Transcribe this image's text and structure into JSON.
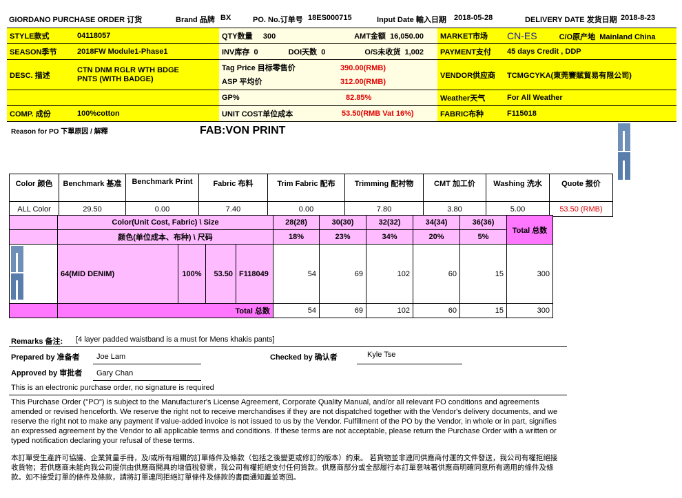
{
  "header": {
    "title": "GIORDANO PURCHASE ORDER 订货",
    "brand_label": "Brand 品牌",
    "brand": "BX",
    "po_label": "PO. No.订单号",
    "po": "18ES000715",
    "input_date_label": "Input Date 輸入日期",
    "input_date": "2018-05-28",
    "delivery_label": "DELIVERY DATE 发货日期",
    "delivery": "2018-8-23"
  },
  "info": {
    "style_label": "STYLE款式",
    "style": "04118057",
    "season_label": "SEASON季节",
    "season": "2018FW Module1-Phase1",
    "desc_label": "DESC. 描述",
    "desc": "CTN DNM RGLR WTH BDGE PNTS (WITH BADGE)",
    "comp_label": "COMP. 成份",
    "comp": "100%cotton",
    "qty_label": "QTY数量",
    "qty": "300",
    "amt_label": "AMT金额",
    "amt": "16,050.00",
    "inv_label": "INV库存",
    "inv": "0",
    "doi_label": "DOI天数",
    "doi": "0",
    "os_label": "O/S未收货",
    "os": "1,002",
    "tag_label": "Tag Price 目标零售价",
    "tag": "390.00(RMB)",
    "asp_label": "ASP 平均价",
    "asp": "312.00(RMB)",
    "gp_label": "GP%",
    "gp": "82.85%",
    "unit_label": "UNIT COST单位成本",
    "unit": "53.50(RMB Vat 16%)",
    "market_label": "MARKET市场",
    "market": "CN-ES",
    "co_label": "C/O原产地",
    "co": "Mainland China",
    "payment_label": "PAYMENT支付",
    "payment": "45 days Credit , DDP",
    "vendor_label": "VENDOR供应商",
    "vendor": "TCMGCYKA(東莞賽賦貿易有限公司)",
    "weather_label": "Weather天气",
    "weather": "For All Weather",
    "fabric_label": "FABRIC布种",
    "fabric": "F115018"
  },
  "reason_label": "Reason for PO 下單原因  / 解釋",
  "fab_note": "FAB:VON PRINT",
  "cost": {
    "headers": [
      "Color 颜色",
      "Benchmark 基准",
      "Benchmark Print",
      "Fabric 布料",
      "Trim Fabric 配布",
      "Trimming 配衬物",
      "CMT 加工价",
      "Washing 洗水",
      "Quote 报价"
    ],
    "row": [
      "ALL Color",
      "29.50",
      "0.00",
      "7.40",
      "0.00",
      "7.80",
      "3.80",
      "5.00",
      "53.50 (RMB)"
    ]
  },
  "sizes": {
    "header_en": "Color(Unit Cost, Fabric) \\ Size",
    "header_cn": "颜色(单位成本、布种) \\ 尺码",
    "sizes": [
      "28(28)",
      "30(30)",
      "32(32)",
      "34(34)",
      "36(36)"
    ],
    "ratios": [
      "18%",
      "23%",
      "34%",
      "20%",
      "5%"
    ],
    "total_label": "Total 总数",
    "row": {
      "color": "64(MID DENIM)",
      "pct": "100%",
      "cost": "53.50",
      "fabric": "F118049",
      "qty": [
        "54",
        "69",
        "102",
        "60",
        "15"
      ],
      "total": "300"
    },
    "totals": {
      "label": "Total 总数",
      "qty": [
        "54",
        "69",
        "102",
        "60",
        "15"
      ],
      "total": "300"
    }
  },
  "remarks_label": "Remarks 备注:",
  "remarks": "[4 layer padded waistband is a must for Mens khakis pants]",
  "prepared_label": "Prepared by 准备者",
  "prepared": "Joe Lam",
  "checked_label": "Checked by 确认者",
  "checked": "Kyle Tse",
  "approved_label": "Approved by 审批者",
  "approved": "Gary Chan",
  "electronic": "This is an electronic purchase order, no signature is required",
  "terms_en": "This Purchase Order (\"PO\") is subject to the Manufacturer's License Agreement, Corporate Quality Manual, and/or all relevant PO conditions and agreements amended or revised henceforth. We reserve the right not to receive merchandises if they are not dispatched together with the Vendor's delivery documents, and we reserve the right not to make any payment if value-added invoice is not issued to us by the Vendor. Fulfillment of the PO by the Vendor, in whole or in part, signifies an expressed agreement by the Vendor to all applicable terms and conditions. If these terms are not acceptable, please return the Purchase Order with a written or typed notification declaring your refusal of these terms.",
  "terms_cn": "本訂單受生產許可協議、企業質量手冊，及/或所有相關的訂單條件及條款（包括之後變更或修訂的版本）約束。 若貨物並非連同供應商付運的文件發送，我公司有權拒絕接收貨物；若供應商未能向我公司提供由供應商開具的增值稅發票，我公司有權拒絕支付任何貨款。供應商部分或全部履行本訂單意味著供應商明確同意所有適用的條件及條款。如不接受訂單的條件及條款，請將訂單連同拒絕訂單條件及條款的書面通知蓋並寄回。",
  "colors": {
    "yellow": "#ffff00",
    "cream": "#fffde2",
    "pink": "#ffbbff",
    "magenta": "#ff77ff",
    "red": "#e00000",
    "market": "#1a1aa0"
  }
}
